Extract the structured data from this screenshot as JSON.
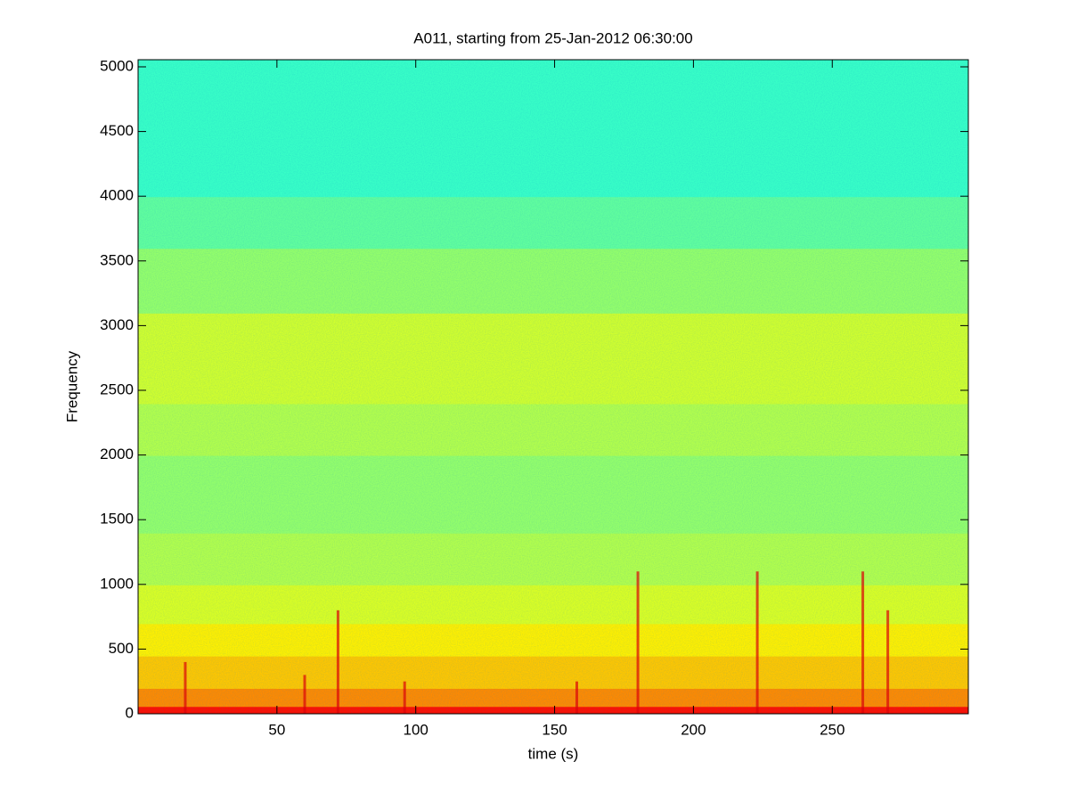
{
  "chart_data": {
    "type": "spectrogram",
    "title": "A011, starting from 25-Jan-2012 06:30:00",
    "x_label": "time (s)",
    "y_label": "Frequency",
    "xlim": [
      0,
      299
    ],
    "ylim": [
      0,
      5055
    ],
    "xticks": [
      50,
      100,
      150,
      200,
      250
    ],
    "yticks": [
      0,
      500,
      1000,
      1500,
      2000,
      2500,
      3000,
      3500,
      4000,
      4500,
      5000
    ],
    "colormap": "jet",
    "frequency_bins": [
      0,
      60,
      200,
      450,
      700,
      1000,
      1400,
      2000,
      2400,
      3100,
      3600,
      4000,
      5055
    ],
    "levels": [
      0.86,
      0.74,
      0.68,
      0.64,
      0.59,
      0.55,
      0.52,
      0.55,
      0.58,
      0.52,
      0.47,
      0.43
    ],
    "events": {
      "x": [
        17,
        60,
        72,
        96,
        158,
        180,
        223,
        261,
        270
      ],
      "max_frequency": [
        400,
        300,
        800,
        250,
        250,
        1100,
        1100,
        1100,
        800
      ]
    }
  }
}
